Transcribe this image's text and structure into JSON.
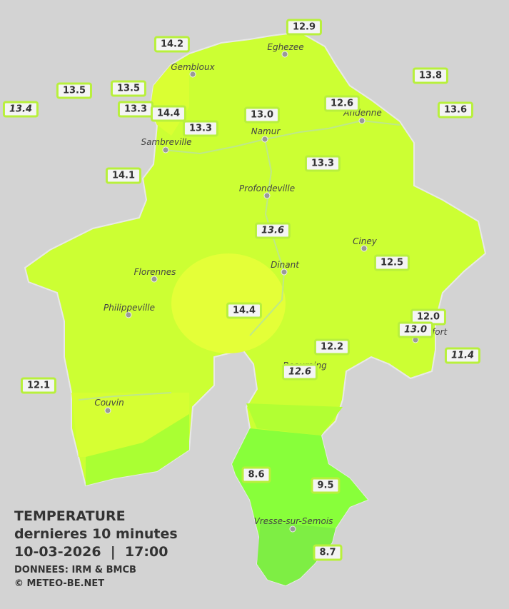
{
  "legend": {
    "title": "TEMPERATURE",
    "subtitle": "dernieres 10 minutes",
    "datetime": "10-03-2026  |  17:00",
    "source": "DONNEES: IRM & BMCB",
    "copyright": "© METEO-BE.NET"
  },
  "cities": [
    "Eghezee",
    "Gembloux",
    "Andenne",
    "Namur",
    "Sambreville",
    "Profondeville",
    "Ciney",
    "Dinant",
    "Florennes",
    "Philippeville",
    "Rochefort",
    "Beauraing",
    "Couvin",
    "Vresse-sur-Semois"
  ],
  "stations": [
    {
      "value": "12.9",
      "italic": false
    },
    {
      "value": "14.2",
      "italic": false
    },
    {
      "value": "13.8",
      "italic": false
    },
    {
      "value": "13.5",
      "italic": false
    },
    {
      "value": "13.5",
      "italic": false
    },
    {
      "value": "13.4",
      "italic": true
    },
    {
      "value": "13.3",
      "italic": false
    },
    {
      "value": "14.4",
      "italic": false
    },
    {
      "value": "13.0",
      "italic": false
    },
    {
      "value": "12.6",
      "italic": false
    },
    {
      "value": "13.6",
      "italic": false
    },
    {
      "value": "13.3",
      "italic": false
    },
    {
      "value": "14.1",
      "italic": false
    },
    {
      "value": "13.3",
      "italic": false
    },
    {
      "value": "13.6",
      "italic": true
    },
    {
      "value": "12.5",
      "italic": false
    },
    {
      "value": "14.4",
      "italic": false
    },
    {
      "value": "12.0",
      "italic": false
    },
    {
      "value": "13.0",
      "italic": true
    },
    {
      "value": "12.2",
      "italic": false
    },
    {
      "value": "11.4",
      "italic": true
    },
    {
      "value": "12.6",
      "italic": true
    },
    {
      "value": "12.1",
      "italic": false
    },
    {
      "value": "8.6",
      "italic": false
    },
    {
      "value": "9.5",
      "italic": false
    },
    {
      "value": "8.7",
      "italic": false
    }
  ]
}
